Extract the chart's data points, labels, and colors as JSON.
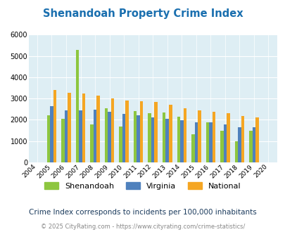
{
  "title": "Shenandoah Property Crime Index",
  "years": [
    2004,
    2005,
    2006,
    2007,
    2008,
    2009,
    2010,
    2011,
    2012,
    2013,
    2014,
    2015,
    2016,
    2017,
    2018,
    2019,
    2020
  ],
  "shenandoah": [
    null,
    2200,
    2050,
    5300,
    1800,
    2550,
    1700,
    2400,
    2300,
    2350,
    2150,
    1320,
    1870,
    1480,
    980,
    1500,
    null
  ],
  "virginia": [
    null,
    2650,
    2440,
    2440,
    2480,
    2380,
    2280,
    2200,
    2130,
    2040,
    1980,
    1890,
    1870,
    1800,
    1650,
    1640,
    null
  ],
  "national": [
    null,
    3420,
    3280,
    3250,
    3130,
    3020,
    2900,
    2860,
    2840,
    2700,
    2560,
    2440,
    2380,
    2300,
    2180,
    2110,
    null
  ],
  "shenandoah_color": "#8dc63f",
  "virginia_color": "#4f81bd",
  "national_color": "#f5a623",
  "bg_color": "#deeef4",
  "ylim": [
    0,
    6000
  ],
  "yticks": [
    0,
    1000,
    2000,
    3000,
    4000,
    5000,
    6000
  ],
  "subtitle": "Crime Index corresponds to incidents per 100,000 inhabitants",
  "footer": "© 2025 CityRating.com - https://www.cityrating.com/crime-statistics/",
  "legend_labels": [
    "Shenandoah",
    "Virginia",
    "National"
  ],
  "title_color": "#1a6faf",
  "subtitle_color": "#1a3a5c",
  "footer_color": "#888888"
}
